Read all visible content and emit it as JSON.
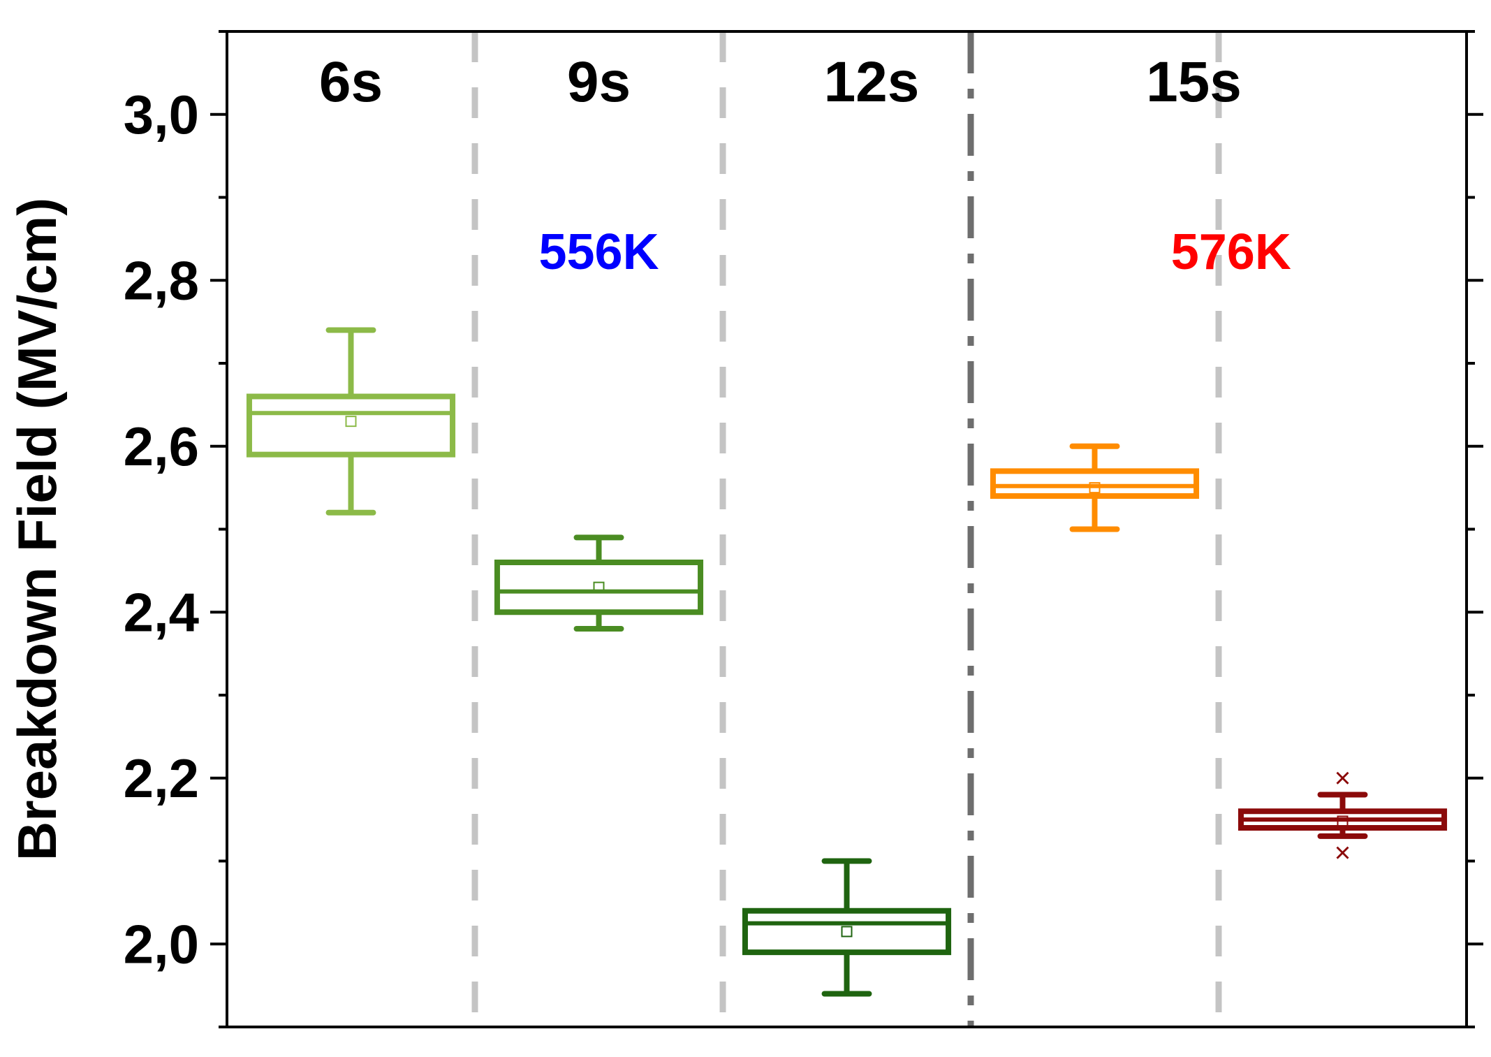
{
  "chart_data": {
    "type": "box",
    "ylabel": "Breakdown Field (MV/cm)",
    "xlabel": "",
    "ylim": [
      1.9,
      3.1
    ],
    "y_ticks": [
      {
        "value": 2.0,
        "label": "2,0"
      },
      {
        "value": 2.2,
        "label": "2,2"
      },
      {
        "value": 2.4,
        "label": "2,4"
      },
      {
        "value": 2.6,
        "label": "2,6"
      },
      {
        "value": 2.8,
        "label": "2,8"
      },
      {
        "value": 3.0,
        "label": "3,0"
      }
    ],
    "y_minor_ticks": [
      1.9,
      2.1,
      2.3,
      2.5,
      2.7,
      2.9,
      3.1
    ],
    "groups": [
      {
        "label": "6s",
        "label_slot": 0
      },
      {
        "label": "9s",
        "label_slot": 1
      },
      {
        "label": "12s",
        "label_slot": 2.1
      },
      {
        "label": "15s",
        "label_slot": 3.4
      }
    ],
    "temperature_labels": [
      {
        "text": "556K",
        "color": "#0000ff",
        "slot": 1
      },
      {
        "text": "576K",
        "color": "#ff0000",
        "slot": 3.55
      }
    ],
    "boxes": [
      {
        "slot": 0,
        "color": "#8cba48",
        "whisker_low": 2.52,
        "q1": 2.59,
        "median": 2.64,
        "q3": 2.66,
        "whisker_high": 2.74,
        "mean": 2.63,
        "outliers": []
      },
      {
        "slot": 1,
        "color": "#4a8c22",
        "whisker_low": 2.38,
        "q1": 2.4,
        "median": 2.425,
        "q3": 2.46,
        "whisker_high": 2.49,
        "mean": 2.43,
        "outliers": []
      },
      {
        "slot": 2,
        "color": "#1f6410",
        "whisker_low": 1.94,
        "q1": 1.99,
        "median": 2.025,
        "q3": 2.04,
        "whisker_high": 2.1,
        "mean": 2.015,
        "outliers": []
      },
      {
        "slot": 3,
        "color": "#ff8c00",
        "whisker_low": 2.5,
        "q1": 2.54,
        "median": 2.552,
        "q3": 2.57,
        "whisker_high": 2.6,
        "mean": 2.55,
        "outliers": []
      },
      {
        "slot": 4,
        "color": "#8b0a0a",
        "whisker_low": 2.13,
        "q1": 2.14,
        "median": 2.15,
        "q3": 2.16,
        "whisker_high": 2.18,
        "mean": 2.148,
        "outliers": [
          2.2,
          2.11
        ]
      }
    ],
    "separators": [
      {
        "slot_boundary": 0.5,
        "style": "dashed-light"
      },
      {
        "slot_boundary": 1.5,
        "style": "dashed-light"
      },
      {
        "slot_boundary": 2.5,
        "style": "dashdot-dark"
      },
      {
        "slot_boundary": 3.5,
        "style": "dashed-light"
      }
    ],
    "grid": false,
    "legend": "none"
  }
}
